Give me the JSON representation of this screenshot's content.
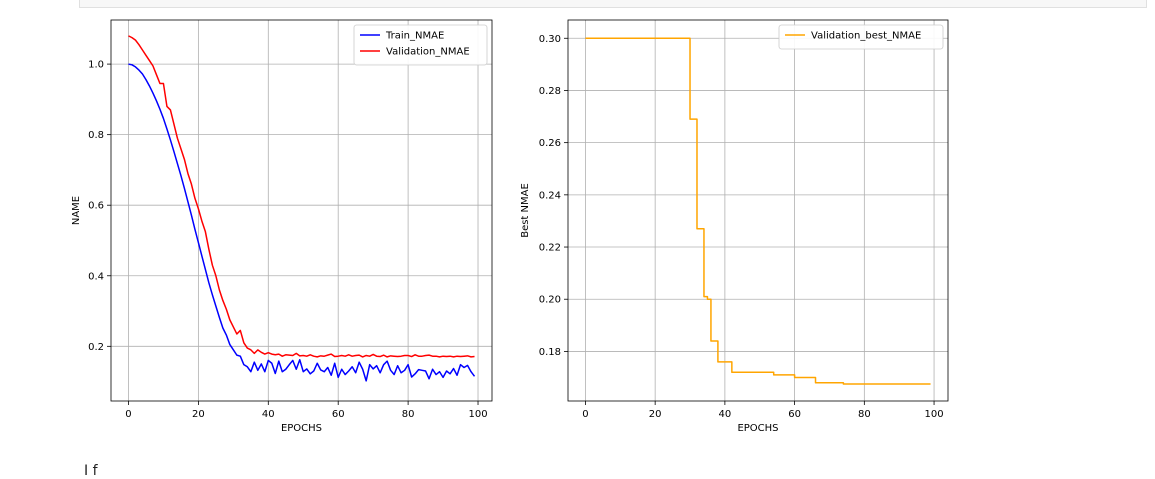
{
  "below_text": "I f",
  "chart_data": [
    {
      "type": "line",
      "title": "",
      "xlabel": "EPOCHS",
      "ylabel": "NAME",
      "xlim": [
        -5,
        104
      ],
      "ylim": [
        0.045,
        1.125
      ],
      "xticks": [
        0,
        20,
        40,
        60,
        80,
        100
      ],
      "yticks": [
        0.2,
        0.4,
        0.6,
        0.8,
        1.0
      ],
      "xtick_labels": [
        "0",
        "20",
        "40",
        "60",
        "80",
        "100"
      ],
      "ytick_labels": [
        "0.2",
        "0.4",
        "0.6",
        "0.8",
        "1.0"
      ],
      "grid": true,
      "legend_position": "top-right",
      "series": [
        {
          "name": "Train_NMAE",
          "color": "#0000ff",
          "x": [
            0,
            1,
            2,
            3,
            4,
            5,
            6,
            7,
            8,
            9,
            10,
            11,
            12,
            13,
            14,
            15,
            16,
            17,
            18,
            19,
            20,
            21,
            22,
            23,
            24,
            25,
            26,
            27,
            28,
            29,
            30,
            31,
            32,
            33,
            34,
            35,
            36,
            37,
            38,
            39,
            40,
            41,
            42,
            43,
            44,
            45,
            46,
            47,
            48,
            49,
            50,
            51,
            52,
            53,
            54,
            55,
            56,
            57,
            58,
            59,
            60,
            61,
            62,
            63,
            64,
            65,
            66,
            67,
            68,
            69,
            70,
            71,
            72,
            73,
            74,
            75,
            76,
            77,
            78,
            79,
            80,
            81,
            82,
            83,
            84,
            85,
            86,
            87,
            88,
            89,
            90,
            91,
            92,
            93,
            94,
            95,
            96,
            97,
            98,
            99
          ],
          "y": [
            1.0,
            0.998,
            0.992,
            0.983,
            0.972,
            0.956,
            0.938,
            0.918,
            0.896,
            0.872,
            0.846,
            0.816,
            0.785,
            0.752,
            0.718,
            0.684,
            0.648,
            0.61,
            0.572,
            0.532,
            0.494,
            0.456,
            0.418,
            0.38,
            0.346,
            0.314,
            0.282,
            0.252,
            0.232,
            0.205,
            0.19,
            0.175,
            0.172,
            0.148,
            0.142,
            0.128,
            0.155,
            0.132,
            0.15,
            0.128,
            0.16,
            0.152,
            0.123,
            0.158,
            0.128,
            0.135,
            0.148,
            0.16,
            0.135,
            0.162,
            0.128,
            0.136,
            0.122,
            0.13,
            0.152,
            0.133,
            0.128,
            0.14,
            0.118,
            0.152,
            0.112,
            0.135,
            0.12,
            0.13,
            0.142,
            0.125,
            0.155,
            0.135,
            0.102,
            0.148,
            0.136,
            0.145,
            0.125,
            0.148,
            0.158,
            0.132,
            0.12,
            0.145,
            0.125,
            0.132,
            0.148,
            0.113,
            0.122,
            0.134,
            0.132,
            0.13,
            0.108,
            0.135,
            0.12,
            0.128,
            0.112,
            0.13,
            0.122,
            0.137,
            0.118,
            0.148,
            0.14,
            0.146,
            0.128,
            0.115
          ]
        },
        {
          "name": "Validation_NMAE",
          "color": "#ff0000",
          "x": [
            0,
            1,
            2,
            3,
            4,
            5,
            6,
            7,
            8,
            9,
            10,
            11,
            12,
            13,
            14,
            15,
            16,
            17,
            18,
            19,
            20,
            21,
            22,
            23,
            24,
            25,
            26,
            27,
            28,
            29,
            30,
            31,
            32,
            33,
            34,
            35,
            36,
            37,
            38,
            39,
            40,
            41,
            42,
            43,
            44,
            45,
            46,
            47,
            48,
            49,
            50,
            51,
            52,
            53,
            54,
            55,
            56,
            57,
            58,
            59,
            60,
            61,
            62,
            63,
            64,
            65,
            66,
            67,
            68,
            69,
            70,
            71,
            72,
            73,
            74,
            75,
            76,
            77,
            78,
            79,
            80,
            81,
            82,
            83,
            84,
            85,
            86,
            87,
            88,
            89,
            90,
            91,
            92,
            93,
            94,
            95,
            96,
            97,
            98,
            99
          ],
          "y": [
            1.08,
            1.075,
            1.068,
            1.055,
            1.04,
            1.025,
            1.01,
            0.995,
            0.97,
            0.945,
            0.945,
            0.88,
            0.87,
            0.83,
            0.79,
            0.76,
            0.73,
            0.69,
            0.66,
            0.62,
            0.59,
            0.555,
            0.525,
            0.475,
            0.43,
            0.4,
            0.36,
            0.33,
            0.305,
            0.275,
            0.255,
            0.235,
            0.245,
            0.21,
            0.195,
            0.19,
            0.18,
            0.19,
            0.183,
            0.178,
            0.182,
            0.178,
            0.176,
            0.178,
            0.172,
            0.176,
            0.175,
            0.174,
            0.18,
            0.173,
            0.174,
            0.172,
            0.176,
            0.172,
            0.17,
            0.173,
            0.172,
            0.175,
            0.178,
            0.171,
            0.172,
            0.174,
            0.172,
            0.176,
            0.172,
            0.174,
            0.175,
            0.17,
            0.174,
            0.172,
            0.177,
            0.172,
            0.171,
            0.175,
            0.17,
            0.173,
            0.172,
            0.171,
            0.172,
            0.174,
            0.174,
            0.171,
            0.176,
            0.172,
            0.172,
            0.174,
            0.175,
            0.172,
            0.172,
            0.17,
            0.172,
            0.171,
            0.172,
            0.17,
            0.172,
            0.171,
            0.172,
            0.173,
            0.17,
            0.171
          ]
        }
      ]
    },
    {
      "type": "line",
      "title": "",
      "xlabel": "EPOCHS",
      "ylabel": "Best NMAE",
      "xlim": [
        -5,
        104
      ],
      "ylim": [
        0.161,
        0.307
      ],
      "xticks": [
        0,
        20,
        40,
        60,
        80,
        100
      ],
      "yticks": [
        0.18,
        0.2,
        0.22,
        0.24,
        0.26,
        0.28,
        0.3
      ],
      "xtick_labels": [
        "0",
        "20",
        "40",
        "60",
        "80",
        "100"
      ],
      "ytick_labels": [
        "0.18",
        "0.20",
        "0.22",
        "0.24",
        "0.26",
        "0.28",
        "0.30"
      ],
      "grid": true,
      "legend_position": "top-right",
      "series": [
        {
          "name": "Validation_best_NMAE",
          "color": "#ffa500",
          "step": true,
          "x": [
            0,
            29,
            30,
            31,
            32,
            33,
            34,
            35,
            36,
            37,
            38,
            39,
            40,
            41,
            42,
            53,
            54,
            59,
            60,
            65,
            66,
            73,
            74,
            99
          ],
          "y": [
            0.3,
            0.3,
            0.269,
            0.269,
            0.227,
            0.227,
            0.201,
            0.2,
            0.184,
            0.184,
            0.176,
            0.176,
            0.176,
            0.176,
            0.172,
            0.172,
            0.171,
            0.171,
            0.17,
            0.17,
            0.168,
            0.168,
            0.1675,
            0.1675
          ]
        }
      ]
    }
  ]
}
